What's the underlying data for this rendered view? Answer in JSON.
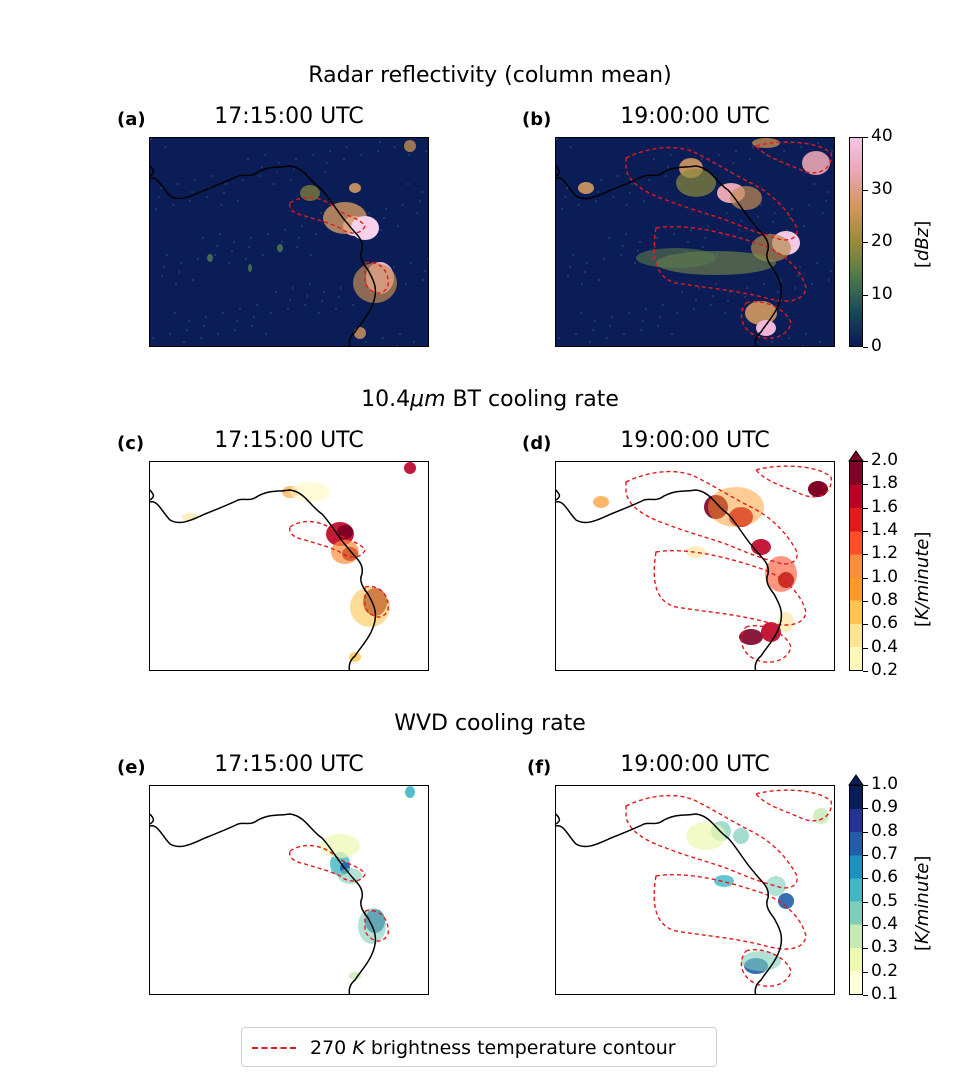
{
  "rows": [
    {
      "title": "Radar reflectivity (column mean)",
      "panels": [
        {
          "letter": "(a)",
          "time": "17:15:00 UTC"
        },
        {
          "letter": "(b)",
          "time": "19:00:00 UTC"
        }
      ],
      "colorbar": {
        "ticks": [
          "0",
          "10",
          "20",
          "30",
          "40"
        ],
        "label": "[dBz]",
        "colors": [
          "#0a1a55",
          "#1a4a5a",
          "#4e7a4a",
          "#9a8a3a",
          "#d4965a",
          "#e8a6b4",
          "#f4c6e8"
        ]
      }
    },
    {
      "title": "10.4μm BT cooling rate",
      "panels": [
        {
          "letter": "(c)",
          "time": "17:15:00 UTC"
        },
        {
          "letter": "(d)",
          "time": "19:00:00 UTC"
        }
      ],
      "colorbar": {
        "ticks": [
          "0.2",
          "0.4",
          "0.6",
          "0.8",
          "1.0",
          "1.2",
          "1.4",
          "1.6",
          "1.8",
          "2.0"
        ],
        "label": "[K/minute]",
        "colors": [
          "#fff7bc",
          "#fee391",
          "#fec44f",
          "#fe9929",
          "#fd8d3c",
          "#fc4e2a",
          "#e31a1c",
          "#bd0026",
          "#800026"
        ]
      }
    },
    {
      "title": "WVD cooling rate",
      "panels": [
        {
          "letter": "(e)",
          "time": "17:15:00 UTC"
        },
        {
          "letter": "(f)",
          "time": "19:00:00 UTC"
        }
      ],
      "colorbar": {
        "ticks": [
          "0.1",
          "0.2",
          "0.3",
          "0.4",
          "0.5",
          "0.6",
          "0.7",
          "0.8",
          "0.9",
          "1.0"
        ],
        "label": "[K/minute]",
        "colors": [
          "#ffffd9",
          "#edf8b1",
          "#c7e9b4",
          "#7fcdbb",
          "#41b6c4",
          "#1d91c0",
          "#225ea8",
          "#253494",
          "#081d58"
        ]
      }
    }
  ],
  "legend": {
    "label": "270 K brightness temperature contour",
    "line_color": "#e31a1c"
  },
  "chart_data": {
    "type": "heatmap",
    "title": "",
    "panels": [
      "(a)",
      "(b)",
      "(c)",
      "(d)",
      "(e)",
      "(f)"
    ],
    "series": [
      {
        "name": "Radar reflectivity (column mean)",
        "range": [
          0,
          40
        ],
        "unit": "dBz"
      },
      {
        "name": "10.4μm BT cooling rate",
        "range": [
          0.2,
          2.0
        ],
        "unit": "K/minute"
      },
      {
        "name": "WVD cooling rate",
        "range": [
          0.1,
          1.0
        ],
        "unit": "K/minute"
      }
    ]
  }
}
